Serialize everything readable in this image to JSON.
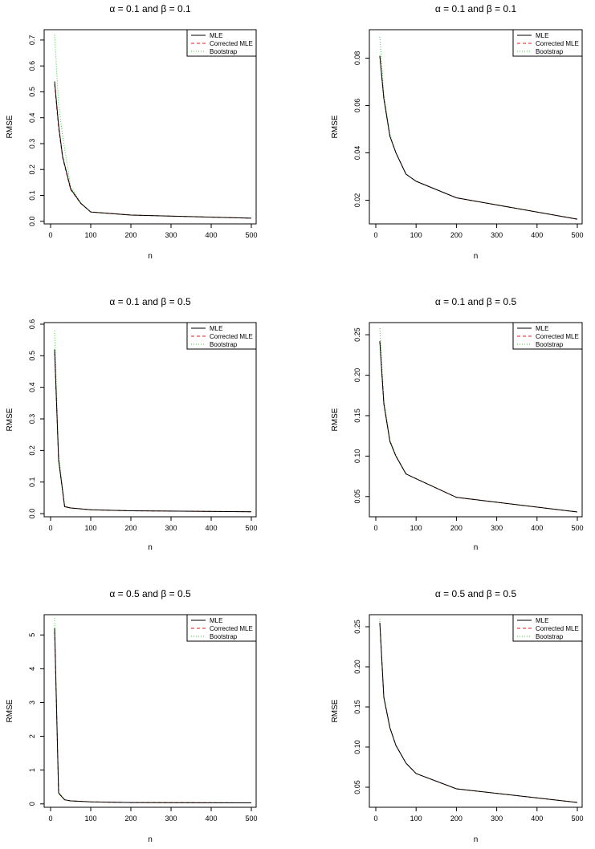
{
  "figure": {
    "series_names": [
      "MLE",
      "Corrected MLE",
      "Bootstrap"
    ],
    "colors": {
      "MLE": "#000000",
      "Corrected MLE": "#e41a1c",
      "Bootstrap": "#33cc33"
    }
  },
  "chart_data": [
    {
      "type": "line",
      "title": "α = 0.1 and β = 0.1",
      "xlabel": "n",
      "ylabel": "RMSE",
      "xlim": [
        0,
        500
      ],
      "ylim": [
        -0.01,
        0.74
      ],
      "xticks": [
        0,
        100,
        200,
        300,
        400,
        500
      ],
      "yticks": [
        0.0,
        0.1,
        0.2,
        0.3,
        0.4,
        0.5,
        0.6,
        0.7
      ],
      "ytick_labels": [
        "0.0",
        "0.1",
        "0.2",
        "0.3",
        "0.4",
        "0.5",
        "0.6",
        "0.7"
      ],
      "legend": "top-right",
      "x": [
        10,
        20,
        30,
        50,
        75,
        100,
        200,
        500
      ],
      "series": [
        {
          "name": "MLE",
          "values": [
            0.54,
            0.37,
            0.25,
            0.125,
            0.07,
            0.036,
            0.024,
            0.012
          ]
        },
        {
          "name": "Corrected MLE",
          "values": [
            0.53,
            0.36,
            0.245,
            0.122,
            0.069,
            0.036,
            0.024,
            0.012
          ]
        },
        {
          "name": "Bootstrap",
          "values": [
            0.72,
            0.45,
            0.33,
            0.135,
            0.072,
            0.037,
            0.024,
            0.012
          ]
        }
      ]
    },
    {
      "type": "line",
      "title": "α = 0.1 and β = 0.1",
      "xlabel": "n",
      "ylabel": "RMSE",
      "xlim": [
        0,
        500
      ],
      "ylim": [
        0.01,
        0.092
      ],
      "xticks": [
        0,
        100,
        200,
        300,
        400,
        500
      ],
      "yticks": [
        0.02,
        0.04,
        0.06,
        0.08
      ],
      "ytick_labels": [
        "0.02",
        "0.04",
        "0.06",
        "0.08"
      ],
      "legend": "top-right",
      "x": [
        10,
        20,
        35,
        50,
        75,
        100,
        200,
        500
      ],
      "series": [
        {
          "name": "MLE",
          "values": [
            0.081,
            0.063,
            0.047,
            0.04,
            0.031,
            0.028,
            0.021,
            0.012
          ]
        },
        {
          "name": "Corrected MLE",
          "values": [
            0.081,
            0.063,
            0.047,
            0.04,
            0.031,
            0.028,
            0.021,
            0.012
          ]
        },
        {
          "name": "Bootstrap",
          "values": [
            0.089,
            0.065,
            0.048,
            0.04,
            0.031,
            0.028,
            0.021,
            0.012
          ]
        }
      ]
    },
    {
      "type": "line",
      "title": "α = 0.1 and β = 0.5",
      "xlabel": "n",
      "ylabel": "RMSE",
      "xlim": [
        0,
        500
      ],
      "ylim": [
        -0.01,
        0.605
      ],
      "xticks": [
        0,
        100,
        200,
        300,
        400,
        500
      ],
      "yticks": [
        0.0,
        0.1,
        0.2,
        0.3,
        0.4,
        0.5,
        0.6
      ],
      "ytick_labels": [
        "0.0",
        "0.1",
        "0.2",
        "0.3",
        "0.4",
        "0.5",
        "0.6"
      ],
      "legend": "top-right",
      "x": [
        10,
        20,
        35,
        50,
        100,
        200,
        500
      ],
      "series": [
        {
          "name": "MLE",
          "values": [
            0.52,
            0.17,
            0.022,
            0.018,
            0.012,
            0.009,
            0.006
          ]
        },
        {
          "name": "Corrected MLE",
          "values": [
            0.51,
            0.17,
            0.022,
            0.018,
            0.012,
            0.009,
            0.006
          ]
        },
        {
          "name": "Bootstrap",
          "values": [
            0.58,
            0.19,
            0.024,
            0.018,
            0.012,
            0.009,
            0.006
          ]
        }
      ]
    },
    {
      "type": "line",
      "title": "α = 0.1 and β = 0.5",
      "xlabel": "n",
      "ylabel": "RMSE",
      "xlim": [
        0,
        500
      ],
      "ylim": [
        0.025,
        0.265
      ],
      "xticks": [
        0,
        100,
        200,
        300,
        400,
        500
      ],
      "yticks": [
        0.05,
        0.1,
        0.15,
        0.2,
        0.25
      ],
      "ytick_labels": [
        "0.05",
        "0.10",
        "0.15",
        "0.20",
        "0.25"
      ],
      "legend": "top-right",
      "x": [
        10,
        20,
        35,
        50,
        75,
        100,
        200,
        500
      ],
      "series": [
        {
          "name": "MLE",
          "values": [
            0.242,
            0.165,
            0.118,
            0.1,
            0.078,
            0.072,
            0.049,
            0.031
          ]
        },
        {
          "name": "Corrected MLE",
          "values": [
            0.242,
            0.165,
            0.118,
            0.1,
            0.078,
            0.072,
            0.049,
            0.031
          ]
        },
        {
          "name": "Bootstrap",
          "values": [
            0.258,
            0.17,
            0.12,
            0.101,
            0.078,
            0.072,
            0.049,
            0.031
          ]
        }
      ]
    },
    {
      "type": "line",
      "title": "α = 0.5 and β = 0.5",
      "xlabel": "n",
      "ylabel": "RMSE",
      "xlim": [
        0,
        500
      ],
      "ylim": [
        -0.1,
        5.6
      ],
      "xticks": [
        0,
        100,
        200,
        300,
        400,
        500
      ],
      "yticks": [
        0,
        1,
        2,
        3,
        4,
        5
      ],
      "ytick_labels": [
        "0",
        "1",
        "2",
        "3",
        "4",
        "5"
      ],
      "legend": "top-right",
      "x": [
        10,
        20,
        35,
        50,
        100,
        200,
        500
      ],
      "series": [
        {
          "name": "MLE",
          "values": [
            5.2,
            0.32,
            0.12,
            0.09,
            0.06,
            0.04,
            0.03
          ]
        },
        {
          "name": "Corrected MLE",
          "values": [
            5.1,
            0.31,
            0.12,
            0.09,
            0.06,
            0.04,
            0.03
          ]
        },
        {
          "name": "Bootstrap",
          "values": [
            5.5,
            0.35,
            0.13,
            0.09,
            0.06,
            0.04,
            0.03
          ]
        }
      ]
    },
    {
      "type": "line",
      "title": "α = 0.5 and β = 0.5",
      "xlabel": "n",
      "ylabel": "RMSE",
      "xlim": [
        0,
        500
      ],
      "ylim": [
        0.025,
        0.265
      ],
      "xticks": [
        0,
        100,
        200,
        300,
        400,
        500
      ],
      "yticks": [
        0.05,
        0.1,
        0.15,
        0.2,
        0.25
      ],
      "ytick_labels": [
        "0.05",
        "0.10",
        "0.15",
        "0.20",
        "0.25"
      ],
      "legend": "top-right",
      "x": [
        10,
        20,
        35,
        50,
        75,
        100,
        200,
        500
      ],
      "series": [
        {
          "name": "MLE",
          "values": [
            0.255,
            0.162,
            0.124,
            0.102,
            0.08,
            0.067,
            0.048,
            0.031
          ]
        },
        {
          "name": "Corrected MLE",
          "values": [
            0.255,
            0.162,
            0.124,
            0.102,
            0.08,
            0.067,
            0.048,
            0.031
          ]
        },
        {
          "name": "Bootstrap",
          "values": [
            0.26,
            0.164,
            0.125,
            0.102,
            0.08,
            0.067,
            0.048,
            0.031
          ]
        }
      ]
    }
  ]
}
